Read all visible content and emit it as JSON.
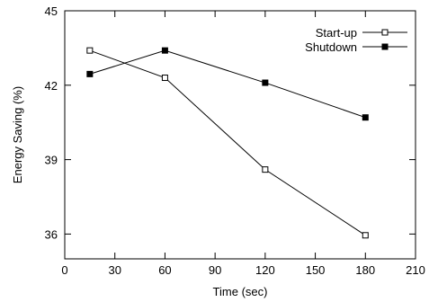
{
  "chart_data": {
    "type": "line",
    "title": "",
    "xlabel": "Time (sec)",
    "ylabel": "Energy Saving (%)",
    "xlim": [
      0,
      210
    ],
    "ylim": [
      35,
      45
    ],
    "xticks": [
      0,
      30,
      60,
      90,
      120,
      150,
      180,
      210
    ],
    "yticks": [
      36,
      39,
      42,
      45
    ],
    "grid": false,
    "legend_position": "top-right",
    "series": [
      {
        "name": "Start-up",
        "marker": "open-square",
        "color": "#000000",
        "x": [
          15,
          60,
          120,
          180
        ],
        "y": [
          43.4,
          42.3,
          38.6,
          35.95
        ]
      },
      {
        "name": "Shutdown",
        "marker": "filled-square",
        "color": "#000000",
        "x": [
          15,
          60,
          120,
          180
        ],
        "y": [
          42.45,
          43.4,
          42.1,
          40.7
        ]
      }
    ]
  }
}
